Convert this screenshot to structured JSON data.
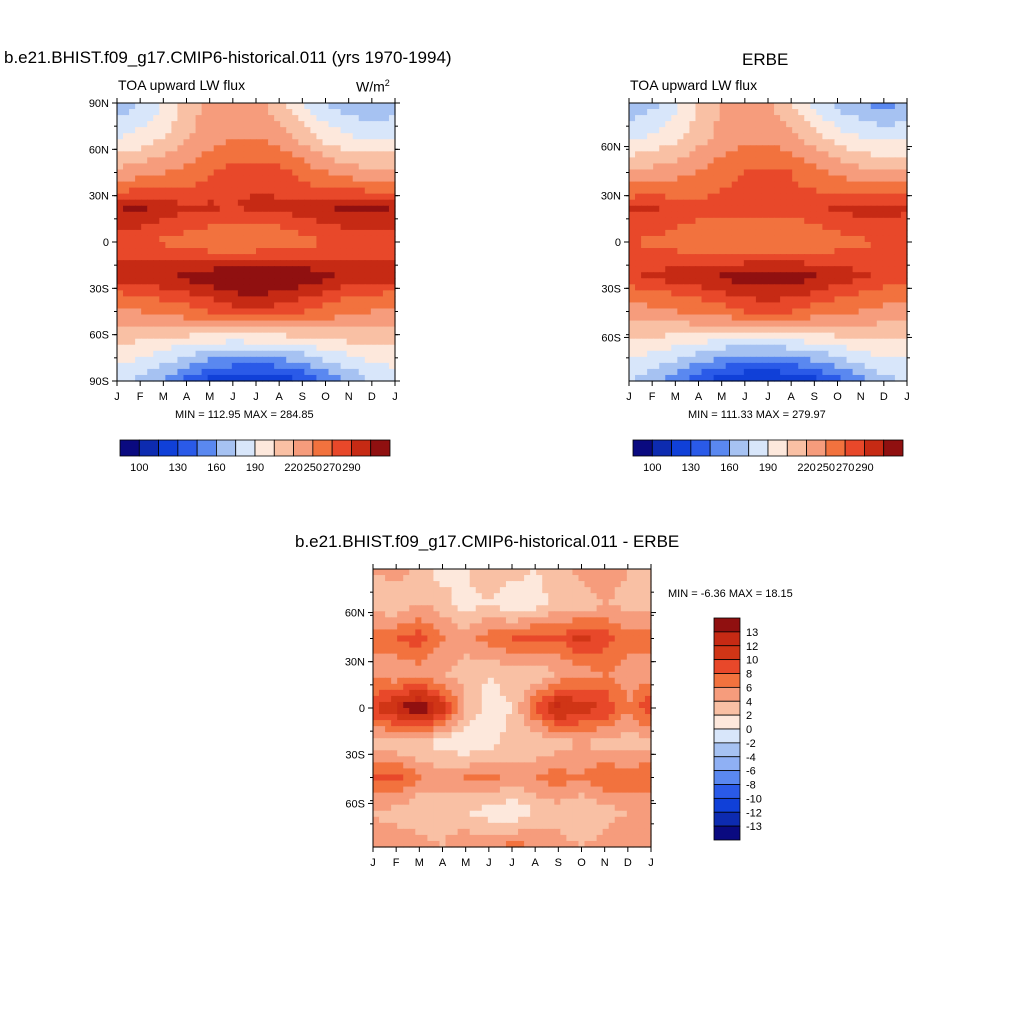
{
  "colors": {
    "abs_scale": [
      "#0a0a80",
      "#0d2bb0",
      "#1040d8",
      "#2a5ae8",
      "#5a88f0",
      "#a6c2f2",
      "#d8e6fa",
      "#fde8dc",
      "#f9c0a4",
      "#f69c7c",
      "#f2723e",
      "#e8482a",
      "#c62a14",
      "#901010"
    ],
    "diff_scale": [
      "#0a0a80",
      "#0d2bb0",
      "#1040d8",
      "#2a5ae8",
      "#5a88f0",
      "#8fb0f4",
      "#a6c2f2",
      "#d8e6fa",
      "#fde8dc",
      "#f9c0a4",
      "#f69c7c",
      "#f2723e",
      "#e8482a",
      "#d03516",
      "#c62a14",
      "#901010"
    ]
  },
  "panel1": {
    "title": "b.e21.BHIST.f09_g17.CMIP6-historical.011 (yrs 1970-1994)",
    "subtitle_left": "TOA upward LW flux",
    "units_base": "W/m",
    "units_sup": "2",
    "stats": "MIN = 112.95 MAX = 284.85"
  },
  "panel2": {
    "title": "ERBE",
    "subtitle_left": "TOA upward LW flux",
    "stats": "MIN = 111.33 MAX = 279.97"
  },
  "panel3": {
    "title": "b.e21.BHIST.f09_g17.CMIP6-historical.011 - ERBE",
    "stats": "MIN =  -6.36 MAX =  18.15"
  },
  "chart_data": [
    {
      "type": "heatmap",
      "title": "b.e21.BHIST.f09_g17.CMIP6-historical.011 (yrs 1970-1994)",
      "ylabel": "",
      "xlabel": "",
      "x_tick_labels": [
        "J",
        "F",
        "M",
        "A",
        "M",
        "J",
        "J",
        "A",
        "S",
        "O",
        "N",
        "D",
        "J"
      ],
      "y_tick_labels": [
        "90N",
        "60N",
        "30N",
        "0",
        "30S",
        "60S",
        "90S"
      ],
      "ylim": [
        -90,
        90
      ],
      "colorbar_labels": [
        "100",
        "130",
        "160",
        "190",
        "220",
        "250",
        "270",
        "290"
      ],
      "x": [
        "Jan",
        "Feb",
        "Mar",
        "Apr",
        "May",
        "Jun",
        "Jul",
        "Aug",
        "Sep",
        "Oct",
        "Nov",
        "Dec",
        "Jan"
      ],
      "y": [
        80,
        60,
        40,
        20,
        0,
        -20,
        -40,
        -60,
        -80
      ],
      "z": [
        [
          165,
          175,
          190,
          210,
          225,
          228,
          225,
          210,
          190,
          175,
          165,
          160,
          165
        ],
        [
          190,
          195,
          205,
          218,
          228,
          235,
          235,
          228,
          215,
          200,
          192,
          188,
          190
        ],
        [
          225,
          228,
          235,
          240,
          248,
          255,
          258,
          255,
          245,
          235,
          228,
          225,
          225
        ],
        [
          270,
          272,
          266,
          262,
          262,
          260,
          262,
          262,
          266,
          270,
          272,
          272,
          270
        ],
        [
          255,
          252,
          248,
          245,
          240,
          235,
          238,
          240,
          245,
          250,
          252,
          255,
          255
        ],
        [
          265,
          268,
          270,
          272,
          278,
          283,
          284,
          282,
          278,
          272,
          268,
          265,
          265
        ],
        [
          232,
          235,
          240,
          245,
          250,
          255,
          258,
          255,
          250,
          245,
          238,
          235,
          232
        ],
        [
          205,
          200,
          195,
          188,
          182,
          180,
          180,
          182,
          188,
          195,
          200,
          205,
          205
        ],
        [
          180,
          170,
          158,
          140,
          125,
          118,
          115,
          118,
          128,
          145,
          160,
          175,
          180
        ]
      ]
    },
    {
      "type": "heatmap",
      "title": "ERBE",
      "x_tick_labels": [
        "J",
        "F",
        "M",
        "A",
        "M",
        "J",
        "J",
        "A",
        "S",
        "O",
        "N",
        "D",
        "J"
      ],
      "y_tick_labels": [
        "60N",
        "30N",
        "0",
        "30S",
        "60S"
      ],
      "ylim": [
        -90,
        90
      ],
      "colorbar_labels": [
        "100",
        "130",
        "160",
        "190",
        "220",
        "250",
        "270",
        "290"
      ],
      "x": [
        "Jan",
        "Feb",
        "Mar",
        "Apr",
        "May",
        "Jun",
        "Jul",
        "Aug",
        "Sep",
        "Oct",
        "Nov",
        "Dec",
        "Jan"
      ],
      "y": [
        80,
        60,
        40,
        20,
        0,
        -20,
        -40,
        -60,
        -80
      ],
      "z": [
        [
          160,
          170,
          185,
          205,
          220,
          225,
          222,
          205,
          185,
          170,
          160,
          155,
          160
        ],
        [
          188,
          192,
          200,
          214,
          225,
          232,
          232,
          225,
          210,
          198,
          190,
          186,
          188
        ],
        [
          222,
          225,
          230,
          236,
          245,
          250,
          252,
          250,
          242,
          232,
          225,
          222,
          222
        ],
        [
          262,
          262,
          258,
          255,
          255,
          255,
          255,
          255,
          258,
          262,
          265,
          265,
          262
        ],
        [
          250,
          248,
          245,
          240,
          238,
          235,
          235,
          238,
          240,
          245,
          248,
          250,
          250
        ],
        [
          258,
          262,
          265,
          268,
          272,
          276,
          278,
          276,
          272,
          266,
          262,
          258,
          258
        ],
        [
          228,
          230,
          235,
          240,
          245,
          250,
          252,
          250,
          245,
          240,
          235,
          230,
          228
        ],
        [
          200,
          196,
          190,
          184,
          178,
          175,
          175,
          178,
          184,
          190,
          196,
          200,
          200
        ],
        [
          175,
          165,
          152,
          135,
          122,
          114,
          112,
          115,
          125,
          140,
          155,
          170,
          175
        ]
      ]
    },
    {
      "type": "heatmap",
      "title": "b.e21.BHIST.f09_g17.CMIP6-historical.011 - ERBE",
      "x_tick_labels": [
        "J",
        "F",
        "M",
        "A",
        "M",
        "J",
        "J",
        "A",
        "S",
        "O",
        "N",
        "D",
        "J"
      ],
      "y_tick_labels": [
        "60N",
        "30N",
        "0",
        "30S",
        "60S"
      ],
      "ylim": [
        -90,
        90
      ],
      "colorbar_labels": [
        "13",
        "12",
        "10",
        "8",
        "6",
        "4",
        "2",
        "0",
        "-2",
        "-4",
        "-6",
        "-8",
        "-10",
        "-12",
        "-13"
      ],
      "x": [
        "Jan",
        "Feb",
        "Mar",
        "Apr",
        "May",
        "Jun",
        "Jul",
        "Aug",
        "Sep",
        "Oct",
        "Nov",
        "Dec",
        "Jan"
      ],
      "y": [
        80,
        60,
        40,
        20,
        0,
        -20,
        -40,
        -60,
        -80
      ],
      "z": [
        [
          4,
          5,
          3,
          1,
          2,
          4,
          3,
          2,
          3,
          5,
          6,
          4,
          4
        ],
        [
          3,
          2,
          4,
          3,
          1,
          2,
          0,
          1,
          3,
          2,
          4,
          3,
          3
        ],
        [
          7,
          8,
          9,
          6,
          5,
          7,
          8,
          9,
          8,
          11,
          9,
          7,
          7
        ],
        [
          5,
          4,
          5,
          4,
          3,
          2,
          3,
          2,
          4,
          5,
          6,
          5,
          5
        ],
        [
          10,
          13,
          15,
          11,
          4,
          1,
          2,
          8,
          13,
          11,
          10,
          6,
          10
        ],
        [
          3,
          2,
          2,
          1,
          0,
          1,
          3,
          2,
          3,
          4,
          3,
          3,
          3
        ],
        [
          8,
          9,
          6,
          5,
          6,
          7,
          5,
          6,
          7,
          6,
          8,
          7,
          8
        ],
        [
          4,
          3,
          2,
          3,
          2,
          1,
          0,
          2,
          3,
          2,
          3,
          4,
          4
        ],
        [
          5,
          6,
          5,
          4,
          6,
          5,
          7,
          6,
          5,
          4,
          5,
          6,
          5
        ]
      ]
    }
  ]
}
